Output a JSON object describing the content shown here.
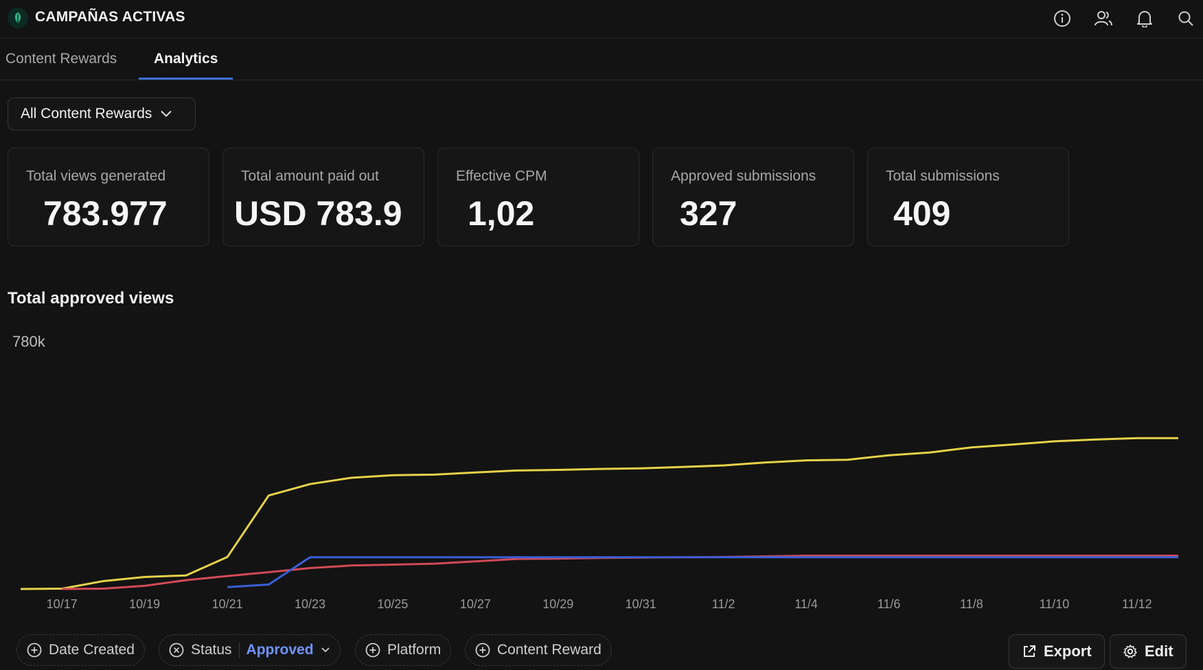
{
  "app": {
    "title": "CAMPAÑAS ACTIVAS"
  },
  "tabs": [
    {
      "label": "Content Rewards",
      "active": false
    },
    {
      "label": "Analytics",
      "active": true
    }
  ],
  "filter_dropdown": {
    "label": "All Content Rewards"
  },
  "stats": [
    {
      "label": "Total views generated",
      "value": "783.977"
    },
    {
      "label": "Total amount paid out",
      "value": "USD 783.9"
    },
    {
      "label": "Effective CPM",
      "value": "1,02"
    },
    {
      "label": "Approved submissions",
      "value": "327"
    },
    {
      "label": "Total submissions",
      "value": "409"
    }
  ],
  "chart_title": "Total approved views",
  "chart_data": {
    "type": "line",
    "title": "Total approved views",
    "ylabel_tick": "780k",
    "ymax": 780000,
    "ylim": [
      0,
      780000
    ],
    "x_ticks": [
      "10/17",
      "10/19",
      "10/21",
      "10/23",
      "10/25",
      "10/27",
      "10/29",
      "10/31",
      "11/2",
      "11/4",
      "11/6",
      "11/8",
      "11/10",
      "11/12"
    ],
    "grid": false,
    "series": [
      {
        "color": "#e6d24a",
        "x": [
          "10/16",
          "10/17",
          "10/18",
          "10/19",
          "10/20",
          "10/21",
          "10/22",
          "10/23",
          "10/24",
          "10/25",
          "10/26",
          "10/27",
          "10/28",
          "10/29",
          "10/30",
          "10/31",
          "11/1",
          "11/2",
          "11/3",
          "11/4",
          "11/5",
          "11/6",
          "11/7",
          "11/8",
          "11/9",
          "11/10",
          "11/11",
          "11/12",
          "11/13"
        ],
        "values": [
          0,
          1000,
          25000,
          38000,
          43000,
          101000,
          295000,
          331000,
          351000,
          359000,
          361000,
          368000,
          374000,
          376000,
          379000,
          381000,
          385000,
          390000,
          399000,
          406000,
          408000,
          422000,
          431000,
          447000,
          456000,
          466000,
          472000,
          476000,
          476000
        ]
      },
      {
        "color": "#d34a56",
        "x": [
          "10/17",
          "10/18",
          "10/19",
          "10/20",
          "10/21",
          "10/22",
          "10/23",
          "10/24",
          "10/25",
          "10/26",
          "10/27",
          "10/28",
          "10/29",
          "10/30",
          "10/31",
          "11/1",
          "11/2",
          "11/3",
          "11/4",
          "11/5",
          "11/6",
          "11/7",
          "11/8",
          "11/9",
          "11/10",
          "11/11",
          "11/12",
          "11/13"
        ],
        "values": [
          0,
          1000,
          10000,
          28000,
          41000,
          53000,
          66000,
          74000,
          77000,
          80000,
          87000,
          95000,
          96000,
          98000,
          99000,
          100000,
          101000,
          103000,
          105000,
          105000,
          105000,
          105000,
          105000,
          105000,
          105000,
          105000,
          105000,
          105000
        ]
      },
      {
        "color": "#3a5fd8",
        "x": [
          "10/21",
          "10/22",
          "10/23",
          "10/24",
          "10/25",
          "10/26",
          "10/27",
          "10/28",
          "10/29",
          "10/30",
          "10/31",
          "11/1",
          "11/2",
          "11/3",
          "11/4",
          "11/5",
          "11/6",
          "11/7",
          "11/8",
          "11/9",
          "11/10",
          "11/11",
          "11/12",
          "11/13"
        ],
        "values": [
          6000,
          14000,
          100000,
          100000,
          100000,
          100000,
          100000,
          100000,
          100000,
          100000,
          100000,
          100000,
          100000,
          100000,
          100000,
          100000,
          100000,
          100000,
          100000,
          100000,
          100000,
          100000,
          100000,
          100000
        ]
      }
    ]
  },
  "filters": {
    "date_created": "Date Created",
    "status_label": "Status",
    "status_value": "Approved",
    "platform": "Platform",
    "content_reward": "Content Reward"
  },
  "actions": {
    "export": "Export",
    "edit": "Edit"
  },
  "icons": [
    "info-icon",
    "users-icon",
    "bell-icon",
    "search-icon",
    "leaf-logo-icon",
    "chevron-down-icon",
    "plus-circle-icon",
    "x-circle-icon",
    "external-link-icon",
    "gear-icon"
  ]
}
